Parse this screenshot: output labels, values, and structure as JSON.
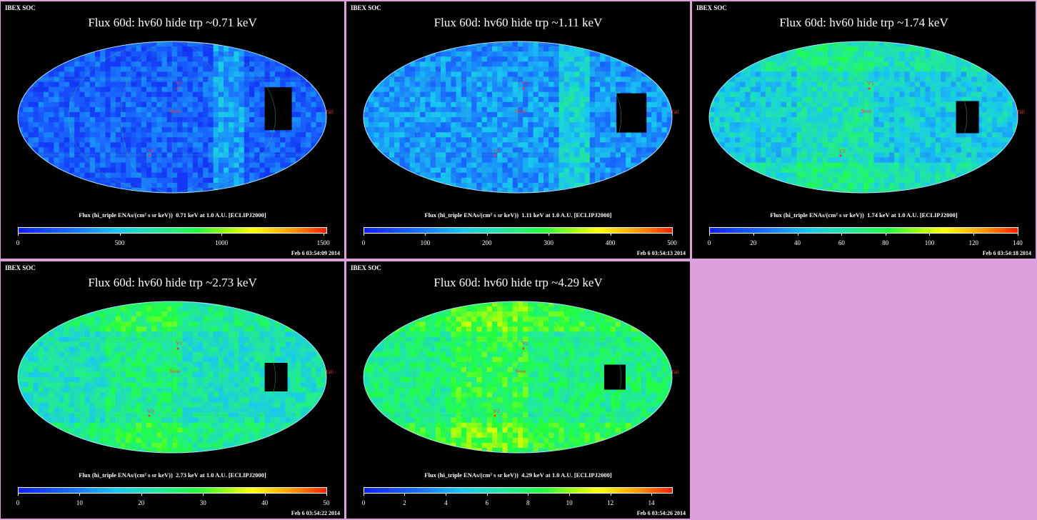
{
  "panels": [
    {
      "org": "IBEX SOC",
      "title": "Flux   60d: hv60 hide trp ~0.71 keV",
      "colorbar_label": "Flux (hi_triple ENAs/(cm² s sr keV))  0.71 keV at 1.0 A.U. [ECLIPJ2000]",
      "ticks": [
        "0",
        "500",
        "1000",
        "1500"
      ],
      "tick_fracs": [
        0.0,
        0.33,
        0.66,
        0.99
      ],
      "date": "Feb  6 03:54:09 2014",
      "level": 0.15,
      "hole": {
        "lon": 150,
        "lat": 10,
        "w": 38,
        "h": 60
      },
      "map_labels": {
        "v1": "V1",
        "v2": "V2",
        "nose": "Nose",
        "tail": "Tail"
      }
    },
    {
      "org": "IBEX SOC",
      "title": "Flux   60d: hv60 hide trp ~1.11 keV",
      "colorbar_label": "Flux (hi_triple ENAs/(cm² s sr keV))  1.11 keV at 1.0 A.U. [ECLIPJ2000]",
      "ticks": [
        "0",
        "100",
        "200",
        "300",
        "400",
        "500"
      ],
      "tick_fracs": [
        0.0,
        0.2,
        0.4,
        0.6,
        0.8,
        1.0
      ],
      "date": "Feb  6 03:54:13 2014",
      "level": 0.25,
      "hole": {
        "lon": 160,
        "lat": 5,
        "w": 42,
        "h": 55
      },
      "map_labels": {
        "v1": "V1",
        "v2": "V2",
        "nose": "Nose",
        "tail": "Tail"
      }
    },
    {
      "org": "IBEX SOC",
      "title": "Flux   60d: hv60 hide trp ~1.74 keV",
      "colorbar_label": "Flux (hi_triple ENAs/(cm² s sr keV))  1.74 keV at 1.0 A.U. [ECLIPJ2000]",
      "ticks": [
        "0",
        "20",
        "40",
        "60",
        "80",
        "100",
        "120",
        "140"
      ],
      "tick_fracs": [
        0.0,
        0.143,
        0.286,
        0.429,
        0.571,
        0.714,
        0.857,
        1.0
      ],
      "date": "Feb  6 03:54:18 2014",
      "level": 0.35,
      "hole": {
        "lon": 150,
        "lat": 0,
        "w": 32,
        "h": 45
      },
      "map_labels": {
        "v1": "V1",
        "v2": "V2",
        "nose": "Nose",
        "tail": "Tail"
      }
    },
    {
      "org": "IBEX SOC",
      "title": "Flux   60d: hv60 hide trp ~2.73 keV",
      "colorbar_label": "Flux (hi_triple ENAs/(cm² s sr keV))  2.73 keV at 1.0 A.U. [ECLIPJ2000]",
      "ticks": [
        "0",
        "10",
        "20",
        "30",
        "40",
        "50"
      ],
      "tick_fracs": [
        0.0,
        0.2,
        0.4,
        0.6,
        0.8,
        1.0
      ],
      "date": "Feb  6 03:54:22 2014",
      "level": 0.42,
      "hole": {
        "lon": 150,
        "lat": 0,
        "w": 32,
        "h": 40
      },
      "map_labels": {
        "v1": "V1",
        "v2": "V2",
        "nose": "Nose",
        "tail": "Tail"
      }
    },
    {
      "org": "IBEX SOC",
      "title": "Flux   60d: hv60 hide trp ~4.29 keV",
      "colorbar_label": "Flux (hi_triple ENAs/(cm² s sr keV))  4.29 keV at 1.0 A.U. [ECLIPJ2000]",
      "ticks": [
        "0",
        "2",
        "4",
        "6",
        "8",
        "10",
        "12",
        "14"
      ],
      "tick_fracs": [
        0.0,
        0.133,
        0.267,
        0.4,
        0.533,
        0.667,
        0.8,
        0.933
      ],
      "date": "Feb  6 03:54:26 2014",
      "level": 0.5,
      "hole": {
        "lon": 140,
        "lat": 0,
        "w": 30,
        "h": 35
      },
      "map_labels": {
        "v1": "V1",
        "v2": "V2",
        "nose": "Nose",
        "tail": "Tail"
      }
    }
  ],
  "colors": {
    "background": "#dda0dd",
    "panel": "#000000",
    "label_red": "#ff3030",
    "grid": "#40c080"
  }
}
